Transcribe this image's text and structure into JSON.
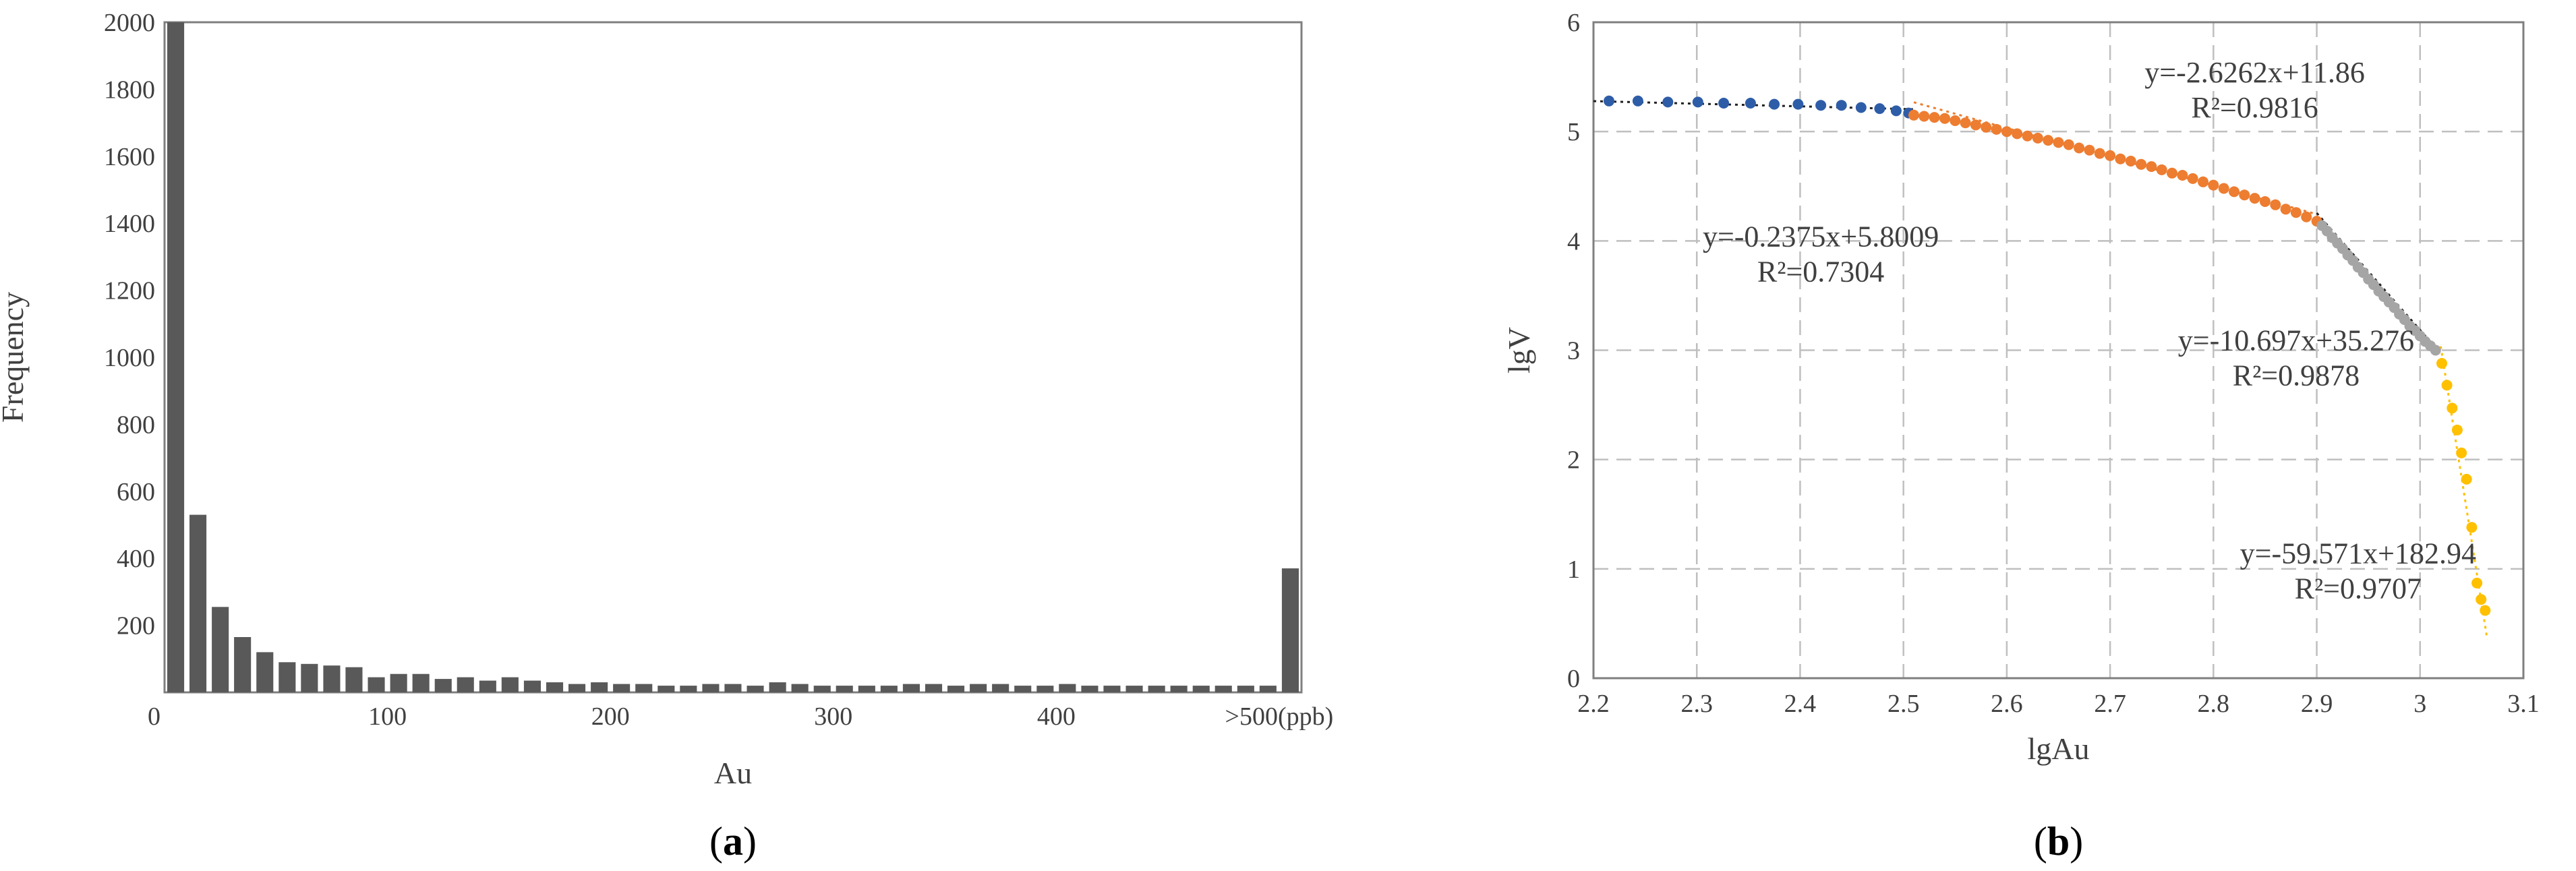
{
  "chart_data": [
    {
      "type": "bar",
      "panel_label": "a",
      "xlabel": "Au",
      "ylabel": "Frequency",
      "ylim": [
        0,
        2000
      ],
      "y_ticks": [
        "2000",
        "1800",
        "1600",
        "1400",
        "1200",
        "1000",
        "800",
        "600",
        "400",
        "200"
      ],
      "x_ticks": [
        {
          "label": "0",
          "at": 0
        },
        {
          "label": "100",
          "at": 100
        },
        {
          "label": "200",
          "at": 200
        },
        {
          "label": "300",
          "at": 300
        },
        {
          "label": "400",
          "at": 400
        },
        {
          "label": ">500(ppb)",
          "at": 500
        }
      ],
      "bin_width": 10,
      "values": [
        2000,
        530,
        255,
        165,
        120,
        90,
        85,
        80,
        75,
        45,
        55,
        55,
        40,
        45,
        35,
        45,
        35,
        30,
        25,
        30,
        25,
        25,
        20,
        20,
        25,
        25,
        20,
        30,
        25,
        20,
        20,
        20,
        20,
        25,
        25,
        20,
        25,
        25,
        20,
        20,
        25,
        20,
        20,
        20,
        20,
        20,
        20,
        20,
        20,
        20,
        370
      ],
      "bar_color": "#595959"
    },
    {
      "type": "scatter",
      "panel_label": "b",
      "xlabel": "lgAu",
      "ylabel": "lgV",
      "xlim": [
        2.2,
        3.1
      ],
      "ylim": [
        0,
        6
      ],
      "x_ticks": [
        "2.2",
        "2.3",
        "2.4",
        "2.5",
        "2.6",
        "2.7",
        "2.8",
        "2.9",
        "3",
        "3.1"
      ],
      "y_ticks": [
        "6",
        "5",
        "4",
        "3",
        "2",
        "1",
        "0"
      ],
      "grid": true,
      "series": [
        {
          "color": "#2E5DA8",
          "points": [
            [
              2.215,
              5.28
            ],
            [
              2.243,
              5.28
            ],
            [
              2.272,
              5.27
            ],
            [
              2.301,
              5.27
            ],
            [
              2.326,
              5.26
            ],
            [
              2.352,
              5.26
            ],
            [
              2.375,
              5.25
            ],
            [
              2.398,
              5.25
            ],
            [
              2.42,
              5.24
            ],
            [
              2.44,
              5.24
            ],
            [
              2.459,
              5.22
            ],
            [
              2.477,
              5.21
            ],
            [
              2.493,
              5.19
            ],
            [
              2.505,
              5.17
            ]
          ],
          "trendline": {
            "equation": "y=-0.2375x+5.8009",
            "r2": "R²=0.7304",
            "x_range": [
              2.2,
              2.51
            ]
          }
        },
        {
          "color": "#ED7D31",
          "points": [
            [
              2.51,
              5.15
            ],
            [
              2.52,
              5.14
            ],
            [
              2.53,
              5.13
            ],
            [
              2.54,
              5.12
            ],
            [
              2.55,
              5.1
            ],
            [
              2.56,
              5.08
            ],
            [
              2.57,
              5.06
            ],
            [
              2.58,
              5.04
            ],
            [
              2.59,
              5.02
            ],
            [
              2.6,
              5.0
            ],
            [
              2.61,
              4.98
            ],
            [
              2.62,
              4.96
            ],
            [
              2.63,
              4.94
            ],
            [
              2.64,
              4.92
            ],
            [
              2.65,
              4.9
            ],
            [
              2.66,
              4.88
            ],
            [
              2.67,
              4.85
            ],
            [
              2.68,
              4.83
            ],
            [
              2.69,
              4.8
            ],
            [
              2.7,
              4.78
            ],
            [
              2.71,
              4.75
            ],
            [
              2.72,
              4.73
            ],
            [
              2.73,
              4.7
            ],
            [
              2.74,
              4.68
            ],
            [
              2.75,
              4.65
            ],
            [
              2.76,
              4.62
            ],
            [
              2.77,
              4.6
            ],
            [
              2.78,
              4.57
            ],
            [
              2.79,
              4.54
            ],
            [
              2.8,
              4.51
            ],
            [
              2.81,
              4.48
            ],
            [
              2.82,
              4.45
            ],
            [
              2.83,
              4.42
            ],
            [
              2.84,
              4.39
            ],
            [
              2.85,
              4.36
            ],
            [
              2.86,
              4.33
            ],
            [
              2.87,
              4.29
            ],
            [
              2.88,
              4.26
            ],
            [
              2.89,
              4.22
            ],
            [
              2.9,
              4.18
            ]
          ],
          "trendline": {
            "equation": "y=-2.6262x+11.86",
            "r2": "R²=0.9816",
            "x_range": [
              2.51,
              2.9
            ]
          }
        },
        {
          "color": "#A5A5A5",
          "points": [
            [
              2.905,
              4.14
            ],
            [
              2.91,
              4.09
            ],
            [
              2.915,
              4.03
            ],
            [
              2.92,
              3.98
            ],
            [
              2.925,
              3.93
            ],
            [
              2.93,
              3.87
            ],
            [
              2.935,
              3.82
            ],
            [
              2.94,
              3.76
            ],
            [
              2.945,
              3.71
            ],
            [
              2.95,
              3.65
            ],
            [
              2.955,
              3.6
            ],
            [
              2.96,
              3.54
            ],
            [
              2.965,
              3.49
            ],
            [
              2.97,
              3.44
            ],
            [
              2.975,
              3.39
            ],
            [
              2.98,
              3.33
            ],
            [
              2.985,
              3.28
            ],
            [
              2.99,
              3.22
            ],
            [
              2.995,
              3.18
            ],
            [
              3.0,
              3.13
            ],
            [
              3.005,
              3.08
            ],
            [
              3.01,
              3.04
            ],
            [
              3.015,
              3.0
            ]
          ],
          "trendline": {
            "equation": "y=-10.697x+35.276",
            "r2": "R²=0.9878",
            "x_range": [
              2.9,
              3.02
            ]
          }
        },
        {
          "color": "#FFC000",
          "points": [
            [
              3.021,
              2.88
            ],
            [
              3.026,
              2.68
            ],
            [
              3.031,
              2.47
            ],
            [
              3.036,
              2.27
            ],
            [
              3.04,
              2.06
            ],
            [
              3.045,
              1.82
            ],
            [
              3.05,
              1.38
            ],
            [
              3.055,
              0.87
            ],
            [
              3.059,
              0.72
            ],
            [
              3.063,
              0.62
            ]
          ],
          "trendline": {
            "equation": "y=-59.571x+182.94",
            "r2": "R²=0.9707",
            "x_range": [
              3.02,
              3.065
            ]
          }
        }
      ]
    }
  ]
}
